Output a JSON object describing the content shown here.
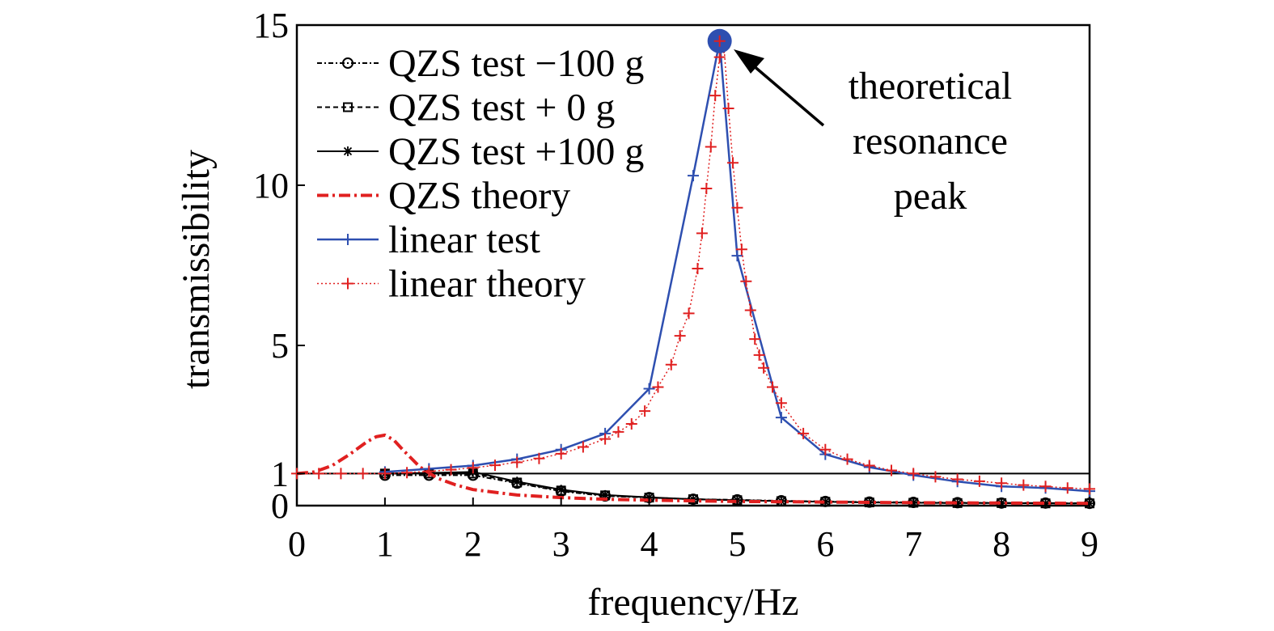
{
  "chart_data": {
    "type": "line",
    "xlabel": "frequency/Hz",
    "ylabel": "transmissibility",
    "xlim": [
      0,
      9
    ],
    "ylim": [
      0,
      15
    ],
    "x_ticks": [
      "0",
      "1",
      "2",
      "3",
      "4",
      "5",
      "6",
      "7",
      "8",
      "9"
    ],
    "x_tick_values": [
      0,
      1,
      2,
      3,
      4,
      5,
      6,
      7,
      8,
      9
    ],
    "y_ticks": [
      "0",
      "1",
      "5",
      "10",
      "15"
    ],
    "y_tick_values": [
      0,
      1,
      5,
      10,
      15
    ],
    "grid": false,
    "legend_position": "top-left",
    "reference_line": {
      "y": 1
    },
    "annotation": {
      "lines": [
        "theoretical",
        "resonance",
        "peak"
      ],
      "x": 4.8,
      "y": 14.5,
      "marker_color": "#2e4fb0"
    },
    "series": [
      {
        "name": "QZS test −100 g",
        "color": "#000000",
        "dash": "6,3,2,3",
        "width": 2,
        "marker": "circle",
        "x": [
          1.0,
          1.5,
          2.0,
          2.5,
          3.0,
          3.5,
          4.0,
          4.5,
          5.0,
          5.5,
          6.0,
          6.5,
          7.0,
          7.5,
          8.0,
          8.5,
          9.0
        ],
        "y": [
          0.95,
          0.95,
          0.95,
          0.7,
          0.45,
          0.3,
          0.25,
          0.2,
          0.18,
          0.15,
          0.13,
          0.11,
          0.1,
          0.09,
          0.08,
          0.08,
          0.07
        ]
      },
      {
        "name": "QZS test + 0 g",
        "color": "#000000",
        "dash": "6,4",
        "width": 2,
        "marker": "square",
        "x": [
          1.0,
          1.5,
          2.0,
          2.5,
          3.0,
          3.5,
          4.0,
          4.5,
          5.0,
          5.5,
          6.0,
          6.5,
          7.0,
          7.5,
          8.0,
          8.5,
          9.0
        ],
        "y": [
          1.0,
          1.0,
          1.0,
          0.72,
          0.47,
          0.32,
          0.25,
          0.2,
          0.17,
          0.14,
          0.12,
          0.1,
          0.09,
          0.08,
          0.08,
          0.07,
          0.07
        ]
      },
      {
        "name": "QZS test +100 g",
        "color": "#000000",
        "dash": "",
        "width": 2,
        "marker": "star",
        "x": [
          1.0,
          1.5,
          2.0,
          2.5,
          3.0,
          3.5,
          4.0,
          4.5,
          5.0,
          5.5,
          6.0,
          6.5,
          7.0,
          7.5,
          8.0,
          8.5,
          9.0
        ],
        "y": [
          1.0,
          1.02,
          1.05,
          0.75,
          0.5,
          0.33,
          0.26,
          0.2,
          0.17,
          0.14,
          0.12,
          0.1,
          0.09,
          0.08,
          0.08,
          0.07,
          0.07
        ]
      },
      {
        "name": "QZS theory",
        "color": "#e02020",
        "dash": "14,5,3,5",
        "width": 4,
        "marker": "none",
        "x": [
          0.0,
          0.2,
          0.4,
          0.6,
          0.8,
          0.9,
          1.0,
          1.1,
          1.2,
          1.4,
          1.6,
          1.8,
          2.0,
          2.5,
          3.0,
          3.5,
          4.0,
          4.5,
          5.0,
          5.5,
          6.0,
          7.0,
          8.0,
          9.0
        ],
        "y": [
          1.0,
          1.05,
          1.25,
          1.6,
          2.0,
          2.15,
          2.2,
          2.05,
          1.75,
          1.2,
          0.85,
          0.65,
          0.5,
          0.33,
          0.25,
          0.2,
          0.17,
          0.15,
          0.13,
          0.12,
          0.11,
          0.09,
          0.08,
          0.07
        ]
      },
      {
        "name": "linear test",
        "color": "#2e4fb0",
        "dash": "",
        "width": 2.5,
        "marker": "plus",
        "x": [
          1.0,
          1.5,
          2.0,
          2.5,
          3.0,
          3.5,
          4.0,
          4.5,
          4.8,
          5.0,
          5.5,
          6.0,
          6.5,
          7.0,
          7.5,
          8.0,
          8.5,
          9.0
        ],
        "y": [
          1.05,
          1.15,
          1.25,
          1.45,
          1.75,
          2.25,
          3.65,
          10.3,
          14.5,
          7.8,
          2.75,
          1.6,
          1.2,
          0.95,
          0.75,
          0.6,
          0.55,
          0.45
        ]
      },
      {
        "name": "linear theory",
        "color": "#e02020",
        "dash": "2,3",
        "width": 1.5,
        "marker": "plus",
        "x": [
          0.0,
          0.25,
          0.5,
          0.75,
          1.0,
          1.25,
          1.5,
          1.75,
          2.0,
          2.25,
          2.5,
          2.75,
          3.0,
          3.25,
          3.5,
          3.65,
          3.8,
          3.95,
          4.1,
          4.25,
          4.35,
          4.45,
          4.55,
          4.6,
          4.65,
          4.7,
          4.75,
          4.8,
          4.85,
          4.9,
          4.95,
          5.0,
          5.05,
          5.1,
          5.15,
          5.2,
          5.25,
          5.3,
          5.4,
          5.5,
          5.75,
          6.0,
          6.25,
          6.5,
          6.75,
          7.0,
          7.25,
          7.5,
          7.75,
          8.0,
          8.25,
          8.5,
          8.75,
          9.0
        ],
        "y": [
          1.0,
          1.0,
          1.0,
          1.0,
          1.0,
          1.03,
          1.07,
          1.12,
          1.18,
          1.26,
          1.35,
          1.47,
          1.62,
          1.83,
          2.08,
          2.3,
          2.55,
          2.95,
          3.7,
          4.4,
          5.3,
          6.0,
          7.4,
          8.5,
          9.9,
          11.2,
          12.8,
          14.0,
          14.3,
          12.4,
          10.7,
          9.3,
          8.0,
          7.0,
          6.1,
          5.2,
          4.7,
          4.3,
          3.7,
          3.2,
          2.25,
          1.75,
          1.45,
          1.25,
          1.1,
          1.0,
          0.9,
          0.82,
          0.76,
          0.7,
          0.64,
          0.6,
          0.55,
          0.52
        ]
      }
    ]
  }
}
